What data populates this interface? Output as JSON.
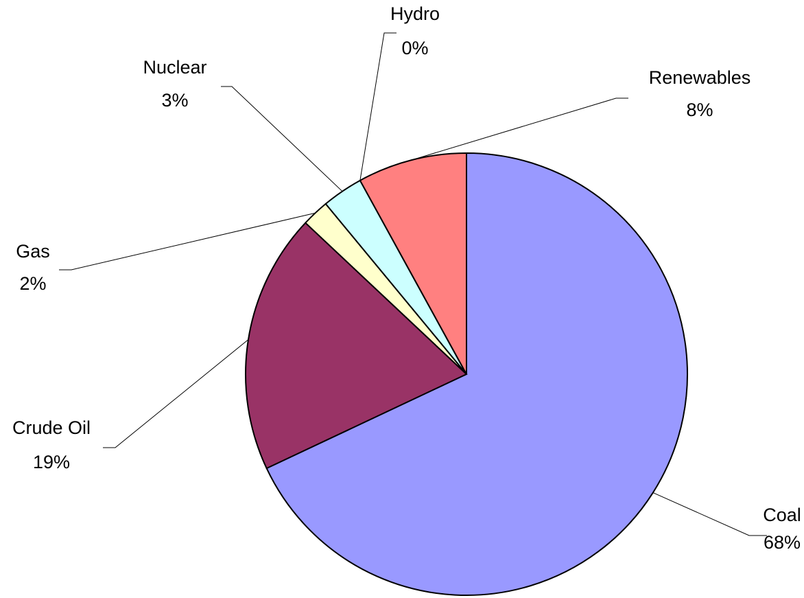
{
  "chart_data": {
    "type": "pie",
    "categories": [
      "Coal",
      "Crude Oil",
      "Gas",
      "Nuclear",
      "Hydro",
      "Renewables"
    ],
    "values": [
      68,
      19,
      2,
      3,
      0,
      8
    ],
    "value_labels": [
      "68%",
      "19%",
      "2%",
      "3%",
      "0%",
      "8%"
    ],
    "colors": [
      "#9999ff",
      "#993366",
      "#ffffcc",
      "#ccffff",
      "#660066",
      "#ff8080"
    ]
  }
}
